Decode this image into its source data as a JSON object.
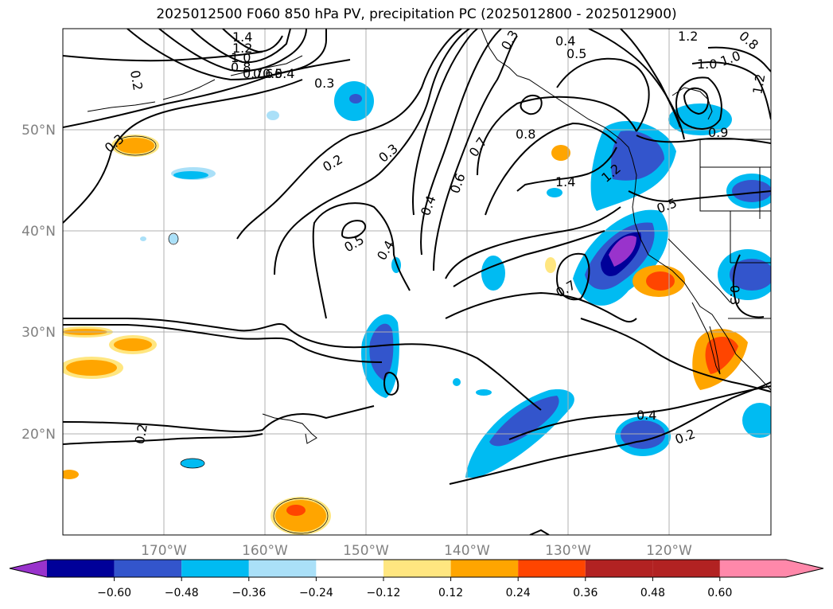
{
  "title": "2025012500 F060 850 hPa PV, precipitation PC (2025012800 - 2025012900)",
  "lat_labels": [
    "50°N",
    "40°N",
    "30°N",
    "20°N"
  ],
  "lon_labels": [
    "170°W",
    "160°W",
    "150°W",
    "140°W",
    "130°W",
    "120°W"
  ],
  "contour_labels": [
    "1.4",
    "1.2",
    "1.0",
    "0.8",
    "0.7",
    "0.6",
    "0.5",
    "0.4",
    "0.3",
    "0.2",
    "0.2",
    "0.3",
    "0.2",
    "0.3",
    "0.5",
    "0.4",
    "0.4",
    "0.6",
    "0.7",
    "0.8",
    "1.4",
    "1.2",
    "0.5",
    "0.7",
    "0.4",
    "0.2",
    "0.4",
    "0.5",
    "0.3",
    "1.2",
    "1.0",
    "1.0",
    "1.2",
    "0.9",
    "0.3",
    "0.8"
  ],
  "colorbar": {
    "ticks": [
      "−0.60",
      "−0.48",
      "−0.36",
      "−0.24",
      "−0.12",
      "0.12",
      "0.24",
      "0.36",
      "0.48",
      "0.60"
    ],
    "colors": [
      "#9933cc",
      "#000099",
      "#3355cc",
      "#00bbf2",
      "#aae0f8",
      "#ffffff",
      "#ffe680",
      "#ffa500",
      "#ff4500",
      "#b22222",
      "#ff88aa"
    ]
  }
}
